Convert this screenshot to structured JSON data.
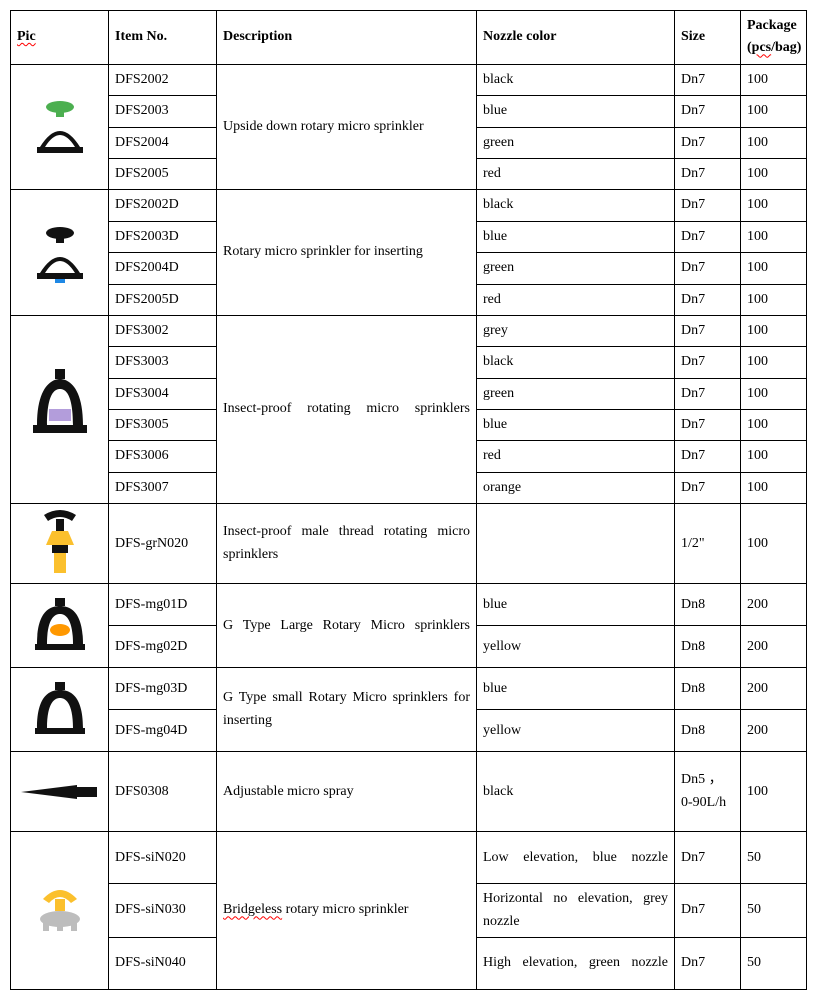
{
  "headers": {
    "pic": "Pic",
    "item": "Item No.",
    "desc": "Description",
    "nozz": "Nozzle color",
    "size": "Size",
    "pkg_l1": "Package",
    "pkg_l2": "(pcs/bag)"
  },
  "g1": {
    "desc": "Upside down rotary micro sprinkler",
    "pic_colors": {
      "top": "#4caf50",
      "body": "#111",
      "base": "#111"
    },
    "rows": [
      {
        "item": "DFS2002",
        "nozz": "black",
        "size": "Dn7",
        "pkg": "100"
      },
      {
        "item": "DFS2003",
        "nozz": "blue",
        "size": "Dn7",
        "pkg": "100"
      },
      {
        "item": "DFS2004",
        "nozz": "green",
        "size": "Dn7",
        "pkg": "100"
      },
      {
        "item": "DFS2005",
        "nozz": "red",
        "size": "Dn7",
        "pkg": "100"
      }
    ]
  },
  "g2": {
    "desc": "Rotary micro sprinkler for inserting",
    "pic_colors": {
      "top": "#111",
      "body": "#111",
      "base": "#1e88e5"
    },
    "rows": [
      {
        "item": "DFS2002D",
        "nozz": "black",
        "size": "Dn7",
        "pkg": "100"
      },
      {
        "item": "DFS2003D",
        "nozz": "blue",
        "size": "Dn7",
        "pkg": "100"
      },
      {
        "item": "DFS2004D",
        "nozz": "green",
        "size": "Dn7",
        "pkg": "100"
      },
      {
        "item": "DFS2005D",
        "nozz": "red",
        "size": "Dn7",
        "pkg": "100"
      }
    ]
  },
  "g3": {
    "desc": "Insect-proof rotating micro sprinklers",
    "pic_colors": {
      "body": "#111",
      "accent": "#b39ddb"
    },
    "rows": [
      {
        "item": "DFS3002",
        "nozz": "grey",
        "size": "Dn7",
        "pkg": "100"
      },
      {
        "item": "DFS3003",
        "nozz": "black",
        "size": "Dn7",
        "pkg": "100"
      },
      {
        "item": "DFS3004",
        "nozz": "green",
        "size": "Dn7",
        "pkg": "100"
      },
      {
        "item": "DFS3005",
        "nozz": "blue",
        "size": "Dn7",
        "pkg": "100"
      },
      {
        "item": "DFS3006",
        "nozz": "red",
        "size": "Dn7",
        "pkg": "100"
      },
      {
        "item": "DFS3007",
        "nozz": "orange",
        "size": "Dn7",
        "pkg": "100"
      }
    ]
  },
  "g4": {
    "desc": "Insect-proof male thread rotating micro sprinklers",
    "pic_colors": {
      "top": "#111",
      "mid": "#fbc02d",
      "base": "#fbc02d"
    },
    "rows": [
      {
        "item": "DFS-grN020",
        "nozz": "",
        "size": "1/2\"",
        "pkg": "100"
      }
    ]
  },
  "g5": {
    "desc": "G Type Large Rotary Micro sprinklers",
    "pic_colors": {
      "body": "#111",
      "nozzle": "#ff9800"
    },
    "rows": [
      {
        "item": "DFS-mg01D",
        "nozz": "blue",
        "size": "Dn8",
        "pkg": "200"
      },
      {
        "item": "DFS-mg02D",
        "nozz": "yellow",
        "size": "Dn8",
        "pkg": "200"
      }
    ]
  },
  "g6": {
    "desc": "G Type small Rotary Micro sprinklers   for inserting",
    "pic_colors": {
      "body": "#111",
      "nozzle": "#fff"
    },
    "rows": [
      {
        "item": "DFS-mg03D",
        "nozz": "blue",
        "size": "Dn8",
        "pkg": "200"
      },
      {
        "item": "DFS-mg04D",
        "nozz": "yellow",
        "size": "Dn8",
        "pkg": "200"
      }
    ]
  },
  "g7": {
    "desc": "Adjustable micro spray",
    "pic_colors": {
      "body": "#111"
    },
    "rows": [
      {
        "item": "DFS0308",
        "nozz": "black",
        "size": "Dn5 ，0-90L/h",
        "pkg": "100"
      }
    ]
  },
  "g8": {
    "desc": "Bridgeless rotary micro sprinkler",
    "pic_colors": {
      "top": "#fbc02d",
      "base": "#bdbdbd"
    },
    "rows": [
      {
        "item": "DFS-siN020",
        "nozz": "Low elevation, blue nozzle",
        "size": "Dn7",
        "pkg": "50"
      },
      {
        "item": "DFS-siN030",
        "nozz": "Horizontal no elevation, grey nozzle",
        "size": "Dn7",
        "pkg": "50"
      },
      {
        "item": "DFS-siN040",
        "nozz": "High elevation, green nozzle",
        "size": "Dn7",
        "pkg": "50"
      }
    ]
  }
}
